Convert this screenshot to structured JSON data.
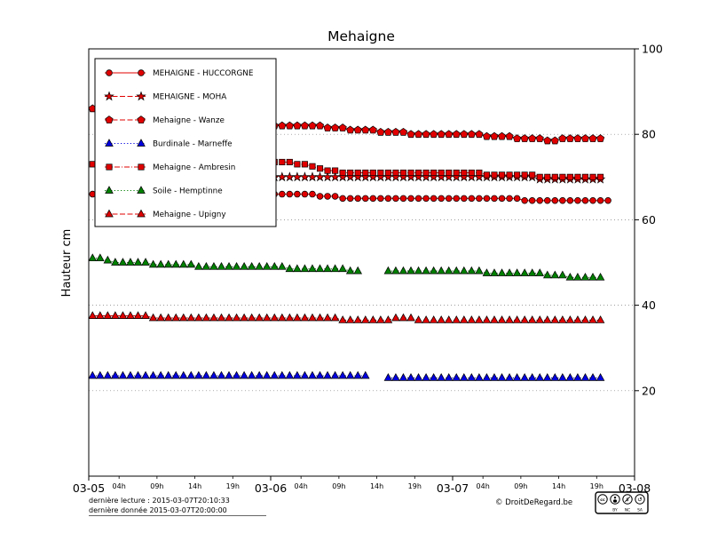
{
  "footer": {
    "line1": "dernière lecture : 2015-03-07T20:10:33",
    "line2": "dernière donnée  2015-03-07T20:00:00",
    "copyright": "© DroitDeRegard.be",
    "cc_badge": [
      "BY",
      "NC",
      "SA"
    ]
  },
  "chart_data": {
    "type": "line",
    "title": "Mehaigne",
    "xlabel": "",
    "ylabel": "Hauteur cm",
    "x_unit": "hours since 2015-03-05 00:00",
    "xlim": [
      0,
      72
    ],
    "ylim": [
      0,
      100
    ],
    "yticks": [
      20,
      40,
      60,
      80,
      100
    ],
    "xticks_major": [
      {
        "t": 0,
        "label": "03-05"
      },
      {
        "t": 24,
        "label": "03-06"
      },
      {
        "t": 48,
        "label": "03-07"
      },
      {
        "t": 72,
        "label": "03-08"
      }
    ],
    "xticks_minor": [
      {
        "t": 4,
        "label": "04h"
      },
      {
        "t": 9,
        "label": "09h"
      },
      {
        "t": 14,
        "label": "14h"
      },
      {
        "t": 19,
        "label": "19h"
      },
      {
        "t": 28,
        "label": "04h"
      },
      {
        "t": 33,
        "label": "09h"
      },
      {
        "t": 38,
        "label": "14h"
      },
      {
        "t": 43,
        "label": "19h"
      },
      {
        "t": 52,
        "label": "04h"
      },
      {
        "t": 57,
        "label": "09h"
      },
      {
        "t": 62,
        "label": "14h"
      },
      {
        "t": 67,
        "label": "19h"
      }
    ],
    "grid": "dotted horizontal lines at yticks",
    "legend_position": "upper left",
    "series": [
      {
        "id": "huccorgne",
        "name": "MEHAIGNE - HUCCORGNE",
        "color": "#e00000",
        "marker": "circle",
        "linestyle": "solid",
        "x_start": 0.5,
        "x_step": 1,
        "values": [
          66,
          67.5,
          67.5,
          67.5,
          67.5,
          67.5,
          67.5,
          67.5,
          67.5,
          67.5,
          67.5,
          67.5,
          67,
          67,
          67,
          67,
          67,
          67,
          67,
          67,
          67,
          67,
          67,
          66,
          66,
          66,
          66,
          66,
          66,
          66,
          65.5,
          65.5,
          65.5,
          65,
          65,
          65,
          65,
          65,
          65,
          65,
          65,
          65,
          65,
          65,
          65,
          65,
          65,
          65,
          65,
          65,
          65,
          65,
          65,
          65,
          65,
          65,
          65,
          64.5,
          64.5,
          64.5,
          64.5,
          64.5,
          64.5,
          64.5,
          64.5,
          64.5,
          64.5,
          64.5,
          64.5
        ]
      },
      {
        "id": "moha",
        "name": "MEHAIGNE - MOHA",
        "color": "#e00000",
        "marker": "star",
        "linestyle": "dashed",
        "x_start": 20.5,
        "x_step": 1,
        "values": [
          67.5,
          68.3,
          69,
          69.5,
          70,
          70,
          70,
          70,
          70,
          70,
          70,
          70,
          70,
          70,
          70,
          70,
          70,
          70,
          70,
          70,
          70,
          70,
          70,
          70,
          70,
          70,
          70,
          70,
          70,
          70,
          70,
          70,
          70,
          70,
          70,
          70,
          70,
          70,
          70,
          69.5,
          69.5,
          69.5,
          69.5,
          69.5,
          69.5,
          69.5,
          69.5,
          69.5
        ]
      },
      {
        "id": "wanze",
        "name": "Mehaigne - Wanze",
        "color": "#e00000",
        "marker": "pentagon",
        "linestyle": "dashed",
        "x_start": 0.5,
        "x_step": 1,
        "values": [
          86,
          84,
          84,
          84,
          84,
          84,
          83.5,
          83.5,
          83.5,
          83.5,
          83.5,
          83.5,
          83,
          83,
          83,
          83,
          83,
          83,
          82.5,
          82.5,
          82.5,
          82.5,
          82.5,
          82,
          82,
          82,
          82,
          82,
          82,
          82,
          82,
          81.5,
          81.5,
          81.5,
          81,
          81,
          81,
          81,
          80.5,
          80.5,
          80.5,
          80.5,
          80,
          80,
          80,
          80,
          80,
          80,
          80,
          80,
          80,
          80,
          79.5,
          79.5,
          79.5,
          79.5,
          79,
          79,
          79,
          79,
          78.5,
          78.5,
          79,
          79,
          79,
          79,
          79,
          79
        ]
      },
      {
        "id": "marneffe",
        "name": "Burdinale - Marneffe",
        "color": "#0000e0",
        "marker": "triangle",
        "linestyle": "dotted",
        "x_start": 0.5,
        "x_step": 1,
        "values": [
          23.5,
          23.5,
          23.5,
          23.5,
          23.5,
          23.5,
          23.5,
          23.5,
          23.5,
          23.5,
          23.5,
          23.5,
          23.5,
          23.5,
          23.5,
          23.5,
          23.5,
          23.5,
          23.5,
          23.5,
          23.5,
          23.5,
          23.5,
          23.5,
          23.5,
          23.5,
          23.5,
          23.5,
          23.5,
          23.5,
          23.5,
          23.5,
          23.5,
          23.5,
          23.5,
          23.5,
          23.5,
          null,
          null,
          23,
          23,
          23,
          23,
          23,
          23,
          23,
          23,
          23,
          23,
          23,
          23,
          23,
          23,
          23,
          23,
          23,
          23,
          23,
          23,
          23,
          23,
          23,
          23,
          23,
          23,
          23,
          23,
          23
        ]
      },
      {
        "id": "ambresin",
        "name": "Mehaigne - Ambresin",
        "color": "#e00000",
        "marker": "square",
        "linestyle": "dashdot",
        "x_start": 0.5,
        "x_step": 1,
        "values": [
          73,
          72,
          72,
          72,
          72,
          72,
          72,
          72,
          70,
          70,
          70,
          70,
          70,
          70,
          68,
          68,
          68,
          68,
          68,
          69,
          70.5,
          71.5,
          72.5,
          73.5,
          73.5,
          73.5,
          73.5,
          73,
          73,
          72.5,
          72,
          71.5,
          71.5,
          71,
          71,
          71,
          71,
          71,
          71,
          71,
          71,
          71,
          71,
          71,
          71,
          71,
          71,
          71,
          71,
          71,
          71,
          71,
          70.5,
          70.5,
          70.5,
          70.5,
          70.5,
          70.5,
          70.5,
          70,
          70,
          70,
          70,
          70,
          70,
          70,
          70,
          70
        ]
      },
      {
        "id": "hemptinne",
        "name": "Soile - Hemptinne",
        "color": "#008000",
        "marker": "triangle",
        "linestyle": "dotted",
        "x_start": 0.5,
        "x_step": 1,
        "values": [
          51,
          51,
          50.5,
          50,
          50,
          50,
          50,
          50,
          49.5,
          49.5,
          49.5,
          49.5,
          49.5,
          49.5,
          49,
          49,
          49,
          49,
          49,
          49,
          49,
          49,
          49,
          49,
          49,
          49,
          48.5,
          48.5,
          48.5,
          48.5,
          48.5,
          48.5,
          48.5,
          48.5,
          48,
          48,
          null,
          null,
          null,
          48,
          48,
          48,
          48,
          48,
          48,
          48,
          48,
          48,
          48,
          48,
          48,
          48,
          47.5,
          47.5,
          47.5,
          47.5,
          47.5,
          47.5,
          47.5,
          47.5,
          47,
          47,
          47,
          46.5,
          46.5,
          46.5,
          46.5,
          46.5
        ]
      },
      {
        "id": "upigny",
        "name": "Mehaigne - Upigny",
        "color": "#e00000",
        "marker": "triangle",
        "linestyle": "dashed",
        "x_start": 0.5,
        "x_step": 1,
        "values": [
          37.5,
          37.5,
          37.5,
          37.5,
          37.5,
          37.5,
          37.5,
          37.5,
          37,
          37,
          37,
          37,
          37,
          37,
          37,
          37,
          37,
          37,
          37,
          37,
          37,
          37,
          37,
          37,
          37,
          37,
          37,
          37,
          37,
          37,
          37,
          37,
          37,
          36.5,
          36.5,
          36.5,
          36.5,
          36.5,
          36.5,
          36.5,
          37,
          37,
          37,
          36.5,
          36.5,
          36.5,
          36.5,
          36.5,
          36.5,
          36.5,
          36.5,
          36.5,
          36.5,
          36.5,
          36.5,
          36.5,
          36.5,
          36.5,
          36.5,
          36.5,
          36.5,
          36.5,
          36.5,
          36.5,
          36.5,
          36.5,
          36.5,
          36.5
        ]
      }
    ]
  }
}
